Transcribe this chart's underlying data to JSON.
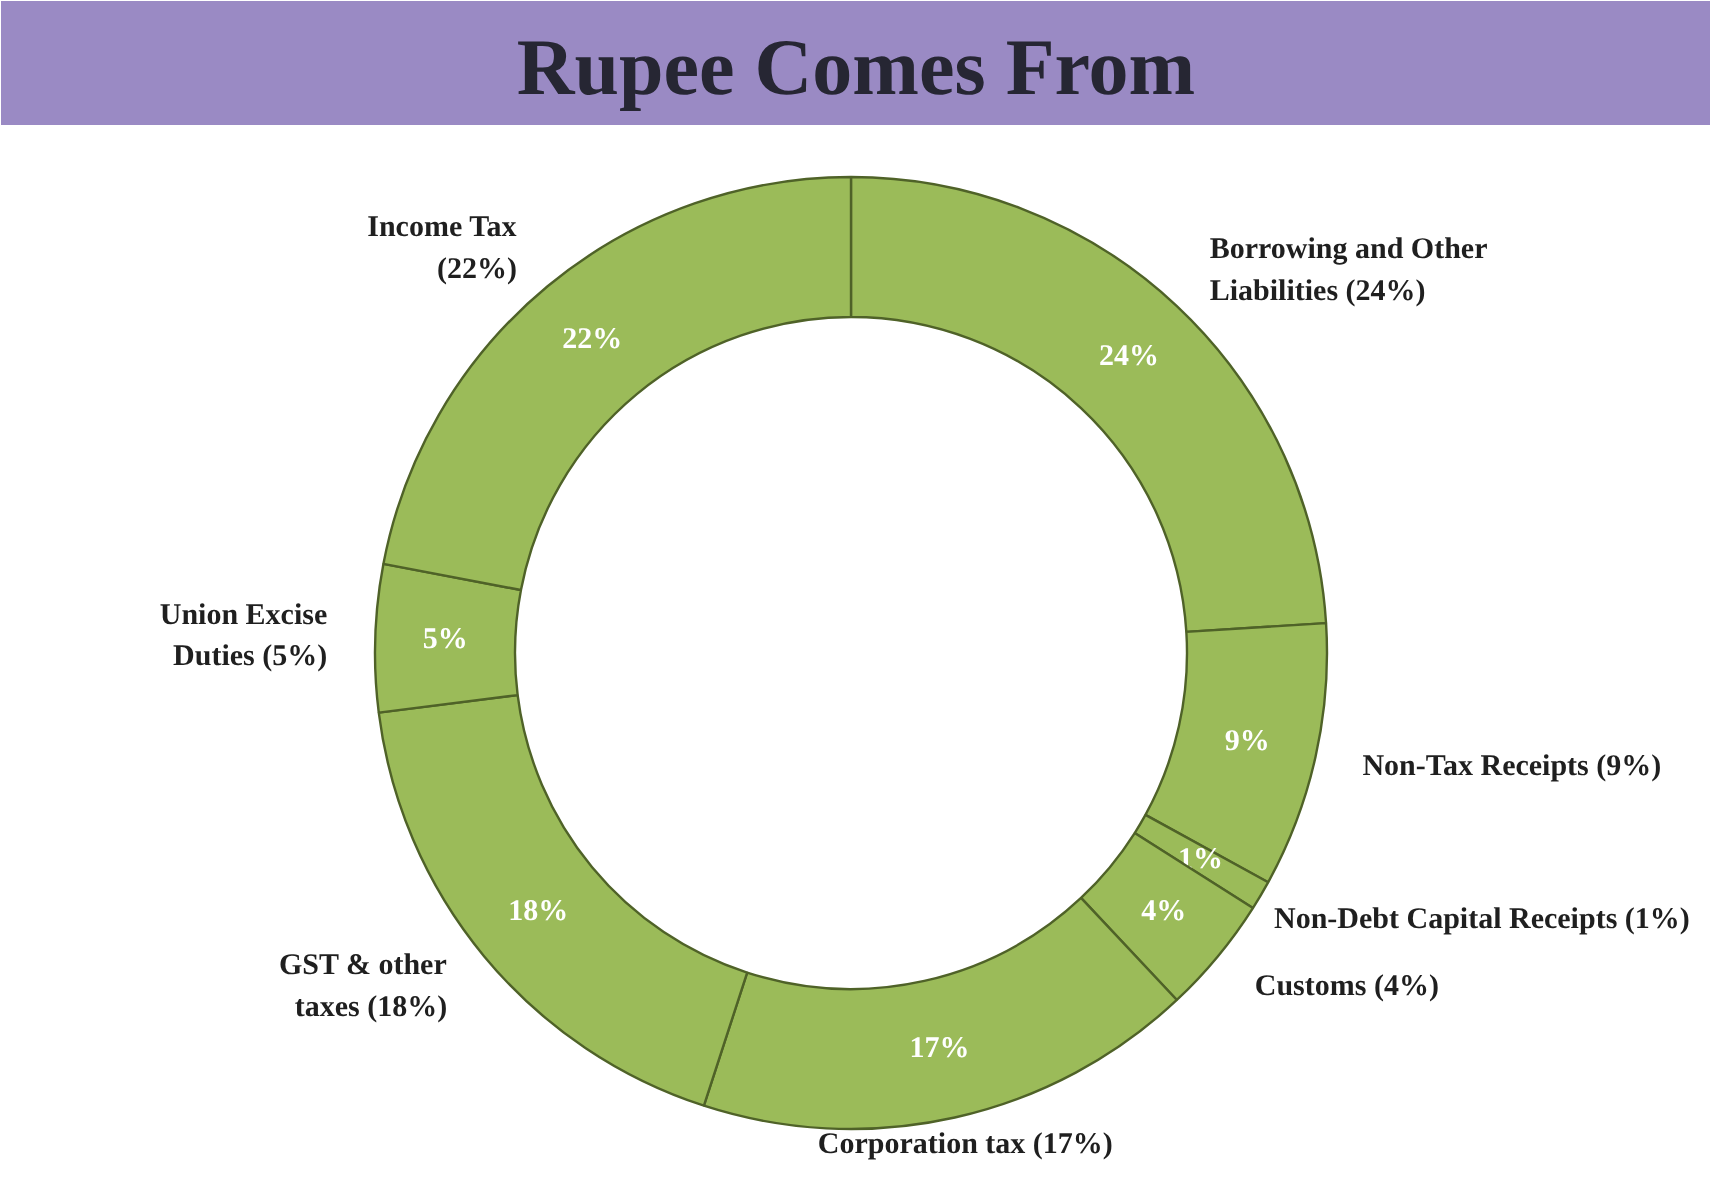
{
  "chart_data": {
    "type": "donut",
    "title": "Rupee Comes From",
    "categories": [
      "Borrowing and Other Liabilities (24%)",
      "Non-Tax Receipts (9%)",
      "Non-Debt Capital Receipts (1%)",
      "Customs (4%)",
      "Corporation tax (17%)",
      "GST & other taxes (18%)",
      "Union Excise Duties (5%)",
      "Income Tax (22%)"
    ],
    "values": [
      24,
      9,
      1,
      4,
      17,
      18,
      5,
      22
    ],
    "value_labels": [
      "24%",
      "9%",
      "1%",
      "4%",
      "17%",
      "18%",
      "5%",
      "22%"
    ],
    "colors": [
      "#9bbb59",
      "#9bbb59",
      "#9bbb59",
      "#9bbb59",
      "#9bbb59",
      "#9bbb59",
      "#9bbb59",
      "#9bbb59"
    ]
  }
}
